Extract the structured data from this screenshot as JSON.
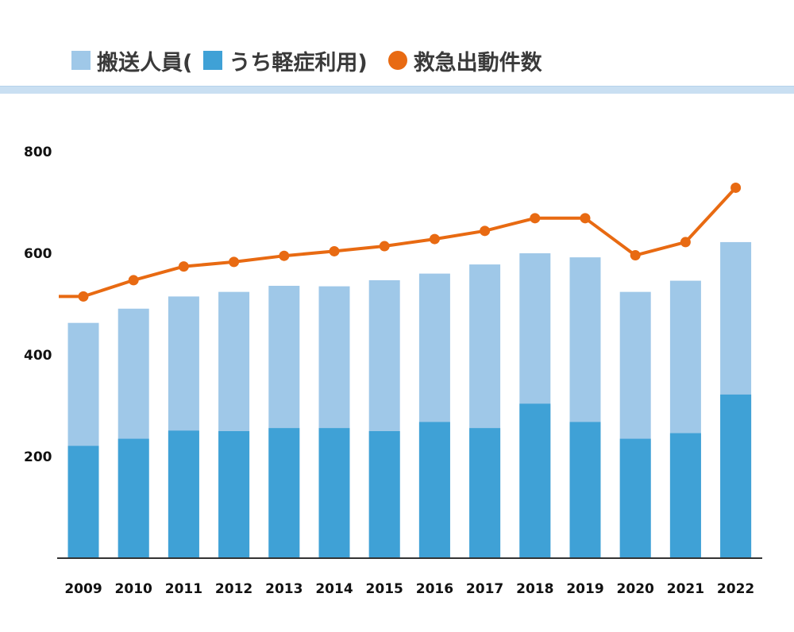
{
  "chart_data": {
    "type": "bar",
    "categories": [
      "2009",
      "2010",
      "2011",
      "2012",
      "2013",
      "2014",
      "2015",
      "2016",
      "2017",
      "2018",
      "2019",
      "2020",
      "2021",
      "2022"
    ],
    "series": [
      {
        "name": "搬送人員",
        "kind": "bar-total",
        "values": [
          463,
          491,
          515,
          524,
          536,
          535,
          547,
          560,
          578,
          600,
          592,
          524,
          546,
          622
        ]
      },
      {
        "name": "うち軽症利用",
        "kind": "bar-part",
        "values": [
          221,
          235,
          251,
          250,
          256,
          256,
          250,
          268,
          256,
          304,
          268,
          235,
          246,
          322
        ]
      },
      {
        "name": "救急出動件数",
        "kind": "line",
        "values": [
          515,
          547,
          574,
          583,
          595,
          604,
          614,
          628,
          644,
          669,
          669,
          596,
          622,
          729
        ]
      }
    ],
    "yticks": [
      "200",
      "400",
      "600",
      "800"
    ],
    "ylim": [
      0,
      800
    ],
    "grid": false,
    "legend_position": "top",
    "colors": {
      "bar_total": "#9fc8e8",
      "bar_part": "#3fa1d6",
      "line": "#e86a12",
      "axis": "#333333"
    }
  },
  "legend": {
    "item1": "搬送人員(",
    "item2": "うち軽症利用)",
    "item3": "救急出動件数"
  }
}
